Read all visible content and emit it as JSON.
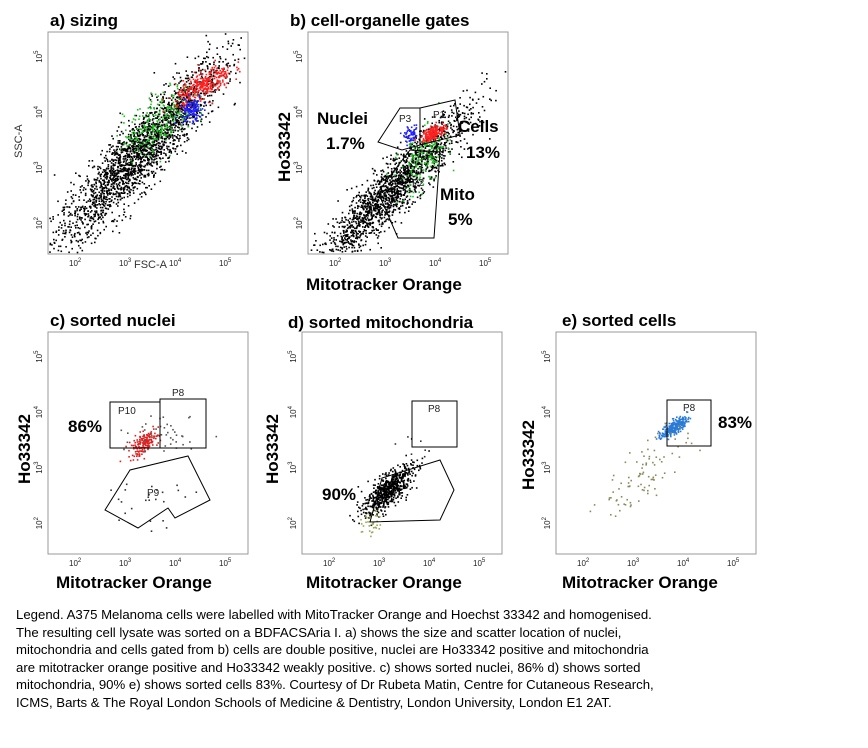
{
  "chart_data": [
    {
      "type": "scatter",
      "panel_title": "a) sizing",
      "xlabel": "FSC-A",
      "ylabel": "SSC-A",
      "xscale": "log",
      "yscale": "log",
      "xticks": [
        "10^2",
        "10^3",
        "10^4",
        "10^5"
      ],
      "yticks": [
        "10^2",
        "10^3",
        "10^4",
        "10^5"
      ],
      "series": [
        {
          "name": "",
          "color": "#000000",
          "note_population": "all events",
          "center_log": [
            3.1,
            3.1
          ],
          "count": 1400
        },
        {
          "name": "",
          "color": "#ff2020",
          "center_log": [
            4.6,
            4.55
          ],
          "count": 320
        },
        {
          "name": "",
          "color": "#22c022",
          "center_log": [
            3.7,
            3.9
          ],
          "count": 260
        },
        {
          "name": "",
          "color": "#2020ff",
          "center_log": [
            4.35,
            4.1
          ],
          "count": 120
        }
      ]
    },
    {
      "type": "scatter",
      "panel_title": "b) cell-organelle gates",
      "xlabel": "Mitotracker Orange",
      "ylabel": "Ho33342",
      "xscale": "log",
      "yscale": "log",
      "xticks": [
        "10^2",
        "10^3",
        "10^4",
        "10^5"
      ],
      "yticks": [
        "10^2",
        "10^3",
        "10^4",
        "10^5"
      ],
      "gates": [
        {
          "id": "P1",
          "label": "Cells",
          "percent": "13%"
        },
        {
          "id": "P3",
          "label": "Nuclei",
          "percent": "1.7%"
        },
        {
          "id": "P2",
          "label": "Mito",
          "percent": "5%"
        }
      ],
      "annotations": [
        "Nuclei",
        "1.7%",
        "Cells",
        "13%",
        "Mito",
        "5%"
      ]
    },
    {
      "type": "scatter",
      "panel_title": "c) sorted nuclei",
      "xlabel": "Mitotracker Orange",
      "ylabel": "Ho33342",
      "xscale": "log",
      "yscale": "log",
      "gates": [
        {
          "id": "P10"
        },
        {
          "id": "P8"
        },
        {
          "id": "P9"
        }
      ],
      "annotations": [
        "86%"
      ]
    },
    {
      "type": "scatter",
      "panel_title": "d) sorted mitochondria",
      "xlabel": "Mitotracker Orange",
      "ylabel": "Ho33342",
      "xscale": "log",
      "yscale": "log",
      "gates": [
        {
          "id": "P8"
        }
      ],
      "annotations": [
        "90%"
      ]
    },
    {
      "type": "scatter",
      "panel_title": "e) sorted cells",
      "xlabel": "Mitotracker Orange",
      "ylabel": "Ho33342",
      "xscale": "log",
      "yscale": "log",
      "gates": [
        {
          "id": "P8"
        }
      ],
      "annotations": [
        "83%"
      ]
    }
  ],
  "legend_lines": [
    "Legend. A375 Melanoma cells were labelled with MitoTracker Orange and Hoechst 33342 and homogenised.",
    "The resulting cell lysate was sorted on a BDFACSAria I. a) shows the size and scatter location of nuclei,",
    "mitochondria and cells gated from b) cells are double positive, nuclei are Ho33342 positive and mitochondria",
    "are mitotracker orange positive and Ho33342 weakly positive. c)  shows sorted nuclei, 86% d) shows sorted",
    "mitochondria, 90% e) shows sorted cells 83%. Courtesy of Dr Rubeta Matin, Centre for Cutaneous Research,",
    "ICMS, Barts & The Royal London Schools of Medicine & Dentistry, London University, London E1 2AT."
  ]
}
